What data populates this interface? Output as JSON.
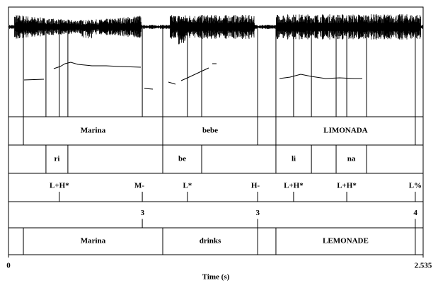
{
  "chart_data": {
    "type": "textgrid",
    "xlabel": "Time (s)",
    "xlim": [
      0,
      2.535
    ],
    "xticks": [
      0,
      2.535
    ],
    "tiers": [
      {
        "kind": "interval",
        "intervals": [
          {
            "xmin": 0.091,
            "xmax": 0.943,
            "text": "Marina"
          },
          {
            "xmin": 0.943,
            "xmax": 1.523,
            "text": "bebe"
          },
          {
            "xmin": 1.635,
            "xmax": 2.487,
            "text": "LIMONADA"
          }
        ]
      },
      {
        "kind": "interval",
        "intervals": [
          {
            "xmin": 0.229,
            "xmax": 0.363,
            "text": "ri"
          },
          {
            "xmin": 0.943,
            "xmax": 1.181,
            "text": "be"
          },
          {
            "xmin": 1.635,
            "xmax": 1.852,
            "text": "li"
          },
          {
            "xmin": 2.003,
            "xmax": 2.189,
            "text": "na"
          }
        ]
      },
      {
        "kind": "point",
        "points": [
          {
            "time": 0.311,
            "text": "L+H*"
          },
          {
            "time": 0.818,
            "text": "M-"
          },
          {
            "time": 1.094,
            "text": "L*"
          },
          {
            "time": 1.523,
            "text": "H-"
          },
          {
            "time": 1.743,
            "text": "L+H*"
          },
          {
            "time": 2.068,
            "text": "L+H*"
          },
          {
            "time": 2.487,
            "text": "L%"
          }
        ]
      },
      {
        "kind": "point",
        "points": [
          {
            "time": 0.818,
            "text": "3"
          },
          {
            "time": 1.523,
            "text": "3"
          },
          {
            "time": 2.487,
            "text": "4"
          }
        ]
      },
      {
        "kind": "interval",
        "intervals": [
          {
            "xmin": 0.091,
            "xmax": 0.943,
            "text": "Marina"
          },
          {
            "xmin": 0.943,
            "xmax": 1.523,
            "text": "drinks"
          },
          {
            "xmin": 1.635,
            "xmax": 2.487,
            "text": "LEMONADE"
          }
        ]
      }
    ]
  }
}
